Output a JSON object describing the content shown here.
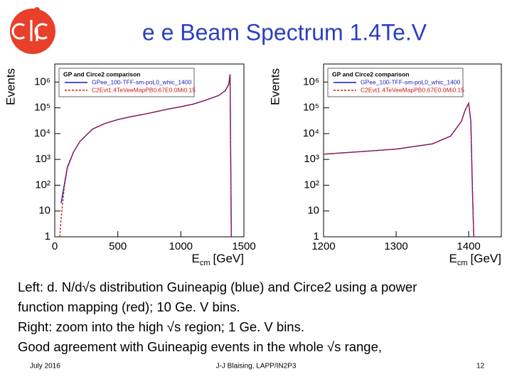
{
  "slide": {
    "title": "e e Beam Spectrum 1.4Te.V",
    "body": [
      "Left: d. N/d√s distribution Guineapig (blue) and Circe2 using a power",
      "function mapping (red); 10 Ge. V bins.",
      "Right: zoom into the high √s region; 1 Ge. V bins.",
      "Good agreement with Guineapig events in the whole √s range,"
    ],
    "footer": {
      "date": "July 2016",
      "author": "J-J Blaising, LAPP/IN2P3",
      "page": "12"
    }
  },
  "chart_data": [
    {
      "type": "line",
      "legend_title": "GP and Circe2 comparison",
      "legend": "top-left",
      "log_y": true,
      "y_label": "Events",
      "x_label": "E",
      "x_label_sub": "cm",
      "x_label_unit": "[GeV]",
      "xlim": [
        0,
        1500
      ],
      "xticks": [
        0,
        500,
        1000,
        1500
      ],
      "ylim": [
        1,
        5000000
      ],
      "yticks": [
        1,
        10,
        {
          "value": 100,
          "label": "10²"
        },
        {
          "value": 1000,
          "label": "10³"
        },
        {
          "value": 10000,
          "label": "10⁴"
        },
        {
          "value": 100000,
          "label": "10⁵"
        },
        {
          "value": 1000000,
          "label": "10⁶"
        }
      ],
      "series": [
        {
          "name": "GPee_100-TFF-sm-poL0_whic_1400",
          "color": "#1a1ab8",
          "linestyle": "solid",
          "x": [
            50,
            75,
            100,
            150,
            200,
            300,
            400,
            500,
            600,
            700,
            800,
            900,
            1000,
            1100,
            1200,
            1300,
            1350,
            1380,
            1390,
            1400
          ],
          "values": [
            20,
            100,
            500,
            2000,
            5000,
            15000,
            25000,
            35000,
            45000,
            55000,
            70000,
            90000,
            110000,
            140000,
            200000,
            300000,
            450000,
            800000,
            2000000,
            1
          ]
        },
        {
          "name": "C2Evt1.4TeVeeMapPB0.67E0.0Mi0.15",
          "color": "#d01818",
          "linestyle": "dashed",
          "x": [
            40,
            50,
            75,
            100,
            150,
            200,
            300,
            400,
            500,
            600,
            700,
            800,
            900,
            1000,
            1100,
            1200,
            1300,
            1350,
            1380,
            1390,
            1400
          ],
          "values": [
            1,
            5,
            80,
            450,
            2000,
            5000,
            15000,
            25000,
            35000,
            45000,
            55000,
            70000,
            90000,
            110000,
            140000,
            200000,
            300000,
            450000,
            800000,
            2000000,
            1
          ]
        }
      ]
    },
    {
      "type": "line",
      "legend_title": "GP and Circe2 comparison",
      "legend": "top-left",
      "log_y": true,
      "y_label": "Events",
      "x_label": "E",
      "x_label_sub": "cm",
      "x_label_unit": "[GeV]",
      "xlim": [
        1200,
        1445
      ],
      "xticks": [
        1200,
        1300,
        1400
      ],
      "ylim": [
        1,
        5000000
      ],
      "yticks": [
        1,
        10,
        {
          "value": 100,
          "label": "10²"
        },
        {
          "value": 1000,
          "label": "10³"
        },
        {
          "value": 10000,
          "label": "10⁴"
        },
        {
          "value": 100000,
          "label": "10⁵"
        },
        {
          "value": 1000000,
          "label": "10⁶"
        }
      ],
      "series": [
        {
          "name": "GPee_100-TFF-sm-poL0_whic_1400",
          "color": "#1a1ab8",
          "linestyle": "solid",
          "x": [
            1200,
            1250,
            1300,
            1350,
            1375,
            1390,
            1395,
            1400,
            1403,
            1405,
            1407
          ],
          "values": [
            1600,
            2000,
            2500,
            4000,
            8000,
            30000,
            80000,
            150000,
            30000,
            100,
            1
          ]
        },
        {
          "name": "C2Evt1.4TeVeeMapPB0.67E0.0Mi0.15",
          "color": "#d01818",
          "linestyle": "dashed",
          "x": [
            1200,
            1250,
            1300,
            1350,
            1375,
            1390,
            1395,
            1400,
            1403,
            1405,
            1407
          ],
          "values": [
            1600,
            2000,
            2500,
            4000,
            8000,
            30000,
            80000,
            150000,
            30000,
            100,
            1
          ]
        }
      ]
    }
  ]
}
